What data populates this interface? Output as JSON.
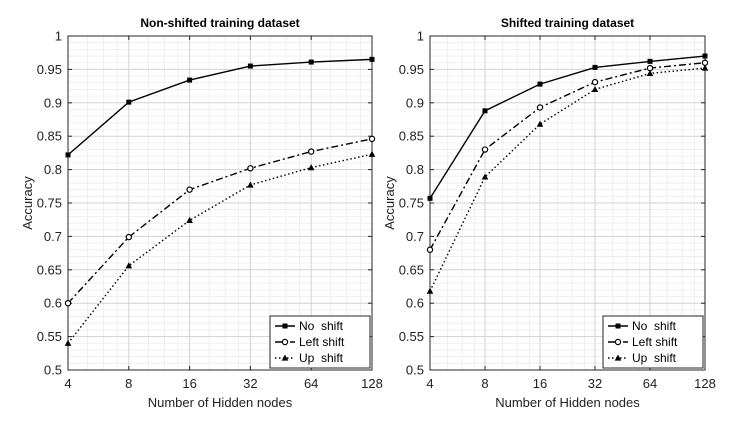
{
  "chart_data": [
    {
      "type": "line",
      "title": "Non-shifted training dataset",
      "xlabel": "Number of Hidden nodes",
      "ylabel": "Accuracy",
      "x_scale": "log2",
      "x": [
        4,
        8,
        16,
        32,
        64,
        128
      ],
      "x_tick_labels": [
        "4",
        "8",
        "16",
        "32",
        "64",
        "128"
      ],
      "ylim": [
        0.5,
        1
      ],
      "y_ticks": [
        0.5,
        0.55,
        0.6,
        0.65,
        0.7,
        0.75,
        0.8,
        0.85,
        0.9,
        0.95,
        1
      ],
      "y_tick_labels": [
        "0.5",
        "0.55",
        "0.6",
        "0.65",
        "0.7",
        "0.75",
        "0.8",
        "0.85",
        "0.9",
        "0.95",
        "1"
      ],
      "grid": true,
      "legend_position": "bottom-right",
      "series": [
        {
          "name": "No  shift",
          "values": [
            0.822,
            0.901,
            0.934,
            0.955,
            0.961,
            0.965
          ],
          "line": "solid",
          "marker": "square",
          "color": "#000000"
        },
        {
          "name": "Left shift",
          "values": [
            0.6,
            0.699,
            0.77,
            0.802,
            0.827,
            0.846
          ],
          "line": "dashdot",
          "marker": "circle",
          "color": "#000000"
        },
        {
          "name": "Up  shift",
          "values": [
            0.54,
            0.656,
            0.724,
            0.777,
            0.803,
            0.823
          ],
          "line": "dotted",
          "marker": "triangle",
          "color": "#000000"
        }
      ]
    },
    {
      "type": "line",
      "title": "Shifted training dataset",
      "xlabel": "Number of Hidden nodes",
      "ylabel": "Accuracy",
      "x_scale": "log2",
      "x": [
        4,
        8,
        16,
        32,
        64,
        128
      ],
      "x_tick_labels": [
        "4",
        "8",
        "16",
        "32",
        "64",
        "128"
      ],
      "ylim": [
        0.5,
        1
      ],
      "y_ticks": [
        0.5,
        0.55,
        0.6,
        0.65,
        0.7,
        0.75,
        0.8,
        0.85,
        0.9,
        0.95,
        1
      ],
      "y_tick_labels": [
        "0.5",
        "0.55",
        "0.6",
        "0.65",
        "0.7",
        "0.75",
        "0.8",
        "0.85",
        "0.9",
        "0.95",
        "1"
      ],
      "grid": true,
      "legend_position": "bottom-right",
      "series": [
        {
          "name": "No  shift",
          "values": [
            0.757,
            0.888,
            0.928,
            0.953,
            0.962,
            0.97
          ],
          "line": "solid",
          "marker": "square",
          "color": "#000000"
        },
        {
          "name": "Left shift",
          "values": [
            0.68,
            0.83,
            0.893,
            0.931,
            0.952,
            0.96
          ],
          "line": "dashdot",
          "marker": "circle",
          "color": "#000000"
        },
        {
          "name": "Up  shift",
          "values": [
            0.618,
            0.789,
            0.868,
            0.92,
            0.944,
            0.952
          ],
          "line": "dotted",
          "marker": "triangle",
          "color": "#000000"
        }
      ]
    }
  ]
}
